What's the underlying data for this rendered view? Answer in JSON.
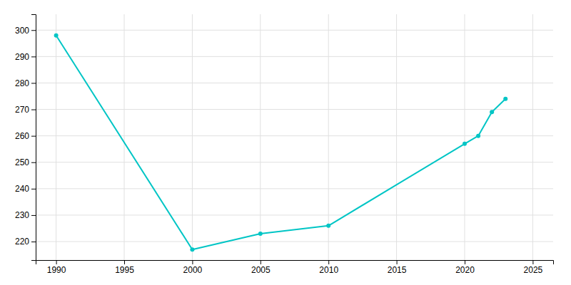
{
  "chart_data": {
    "type": "line",
    "x": [
      1990,
      2000,
      2005,
      2010,
      2020,
      2021,
      2022,
      2023
    ],
    "values": [
      298,
      217,
      223,
      226,
      257,
      260,
      269,
      274
    ],
    "color": "#00C5C5",
    "marker": "circle",
    "xlim": [
      1988.5,
      2026.5
    ],
    "ylim": [
      213,
      306
    ],
    "xticks": [
      1990,
      1995,
      2000,
      2005,
      2010,
      2015,
      2020,
      2025
    ],
    "yticks": [
      220,
      230,
      240,
      250,
      260,
      270,
      280,
      290,
      300
    ],
    "grid": true
  }
}
